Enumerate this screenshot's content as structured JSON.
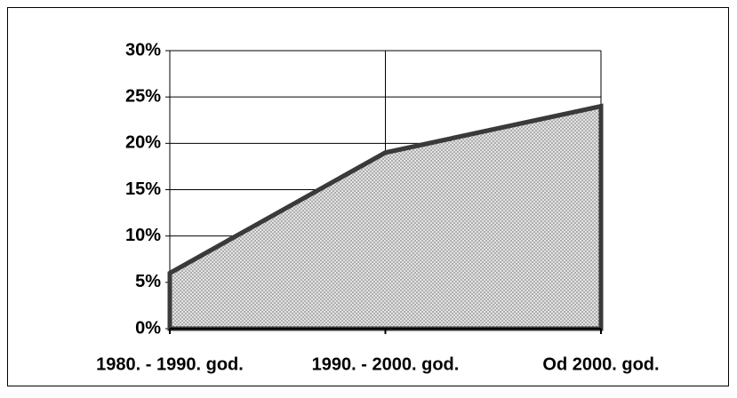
{
  "chart_data": {
    "type": "area",
    "categories": [
      "1980. - 1990. god.",
      "1990. - 2000. god.",
      "Od 2000. god."
    ],
    "values": [
      6,
      19,
      24
    ],
    "color": "#3a3a3a",
    "ylim": [
      0,
      30
    ],
    "yticks": [
      {
        "value": 0,
        "label": "0%"
      },
      {
        "value": 5,
        "label": "5%"
      },
      {
        "value": 10,
        "label": "10%"
      },
      {
        "value": 15,
        "label": "15%"
      },
      {
        "value": 20,
        "label": "20%"
      },
      {
        "value": 25,
        "label": "25%"
      },
      {
        "value": 30,
        "label": "30%"
      }
    ],
    "grid": true
  }
}
